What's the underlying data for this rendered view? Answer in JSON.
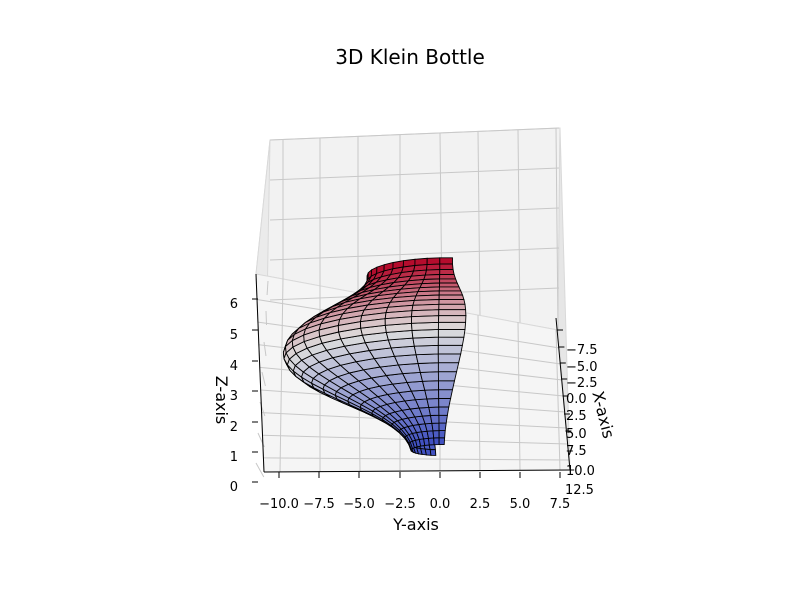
{
  "chart_data": {
    "type": "surface3d",
    "title": "3D Klein Bottle",
    "xlabel": "X-axis",
    "ylabel": "Y-axis",
    "zlabel": "Z-axis",
    "x_ticks": [
      "−7.5",
      "−5.0",
      "−2.5",
      "0.0",
      "2.5",
      "5.0",
      "7.5",
      "10.0",
      "12.5"
    ],
    "y_ticks": [
      "−10.0",
      "−7.5",
      "−5.0",
      "−2.5",
      "0.0",
      "2.5",
      "5.0",
      "7.5"
    ],
    "z_ticks": [
      "0",
      "1",
      "2",
      "3",
      "4",
      "5",
      "6"
    ],
    "xlim": [
      -8,
      12
    ],
    "ylim": [
      -11,
      8
    ],
    "zlim": [
      0,
      6.5
    ],
    "colormap": "coolwarm",
    "colormap_colors": [
      "#3b4cc0",
      "#dddddd",
      "#b40426"
    ],
    "grid": true,
    "edge_color": "#000000"
  }
}
